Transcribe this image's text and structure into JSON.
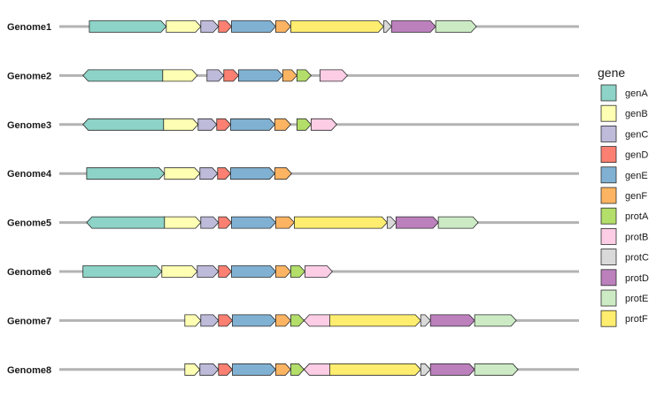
{
  "chart_data": {
    "type": "gene-arrow-map",
    "genomes": [
      "Genome1",
      "Genome2",
      "Genome3",
      "Genome4",
      "Genome5",
      "Genome6",
      "Genome7",
      "Genome8"
    ],
    "legend": {
      "title": "gene",
      "entries": [
        {
          "name": "genA",
          "color": "#8DD3C7"
        },
        {
          "name": "genB",
          "color": "#FFFFB3"
        },
        {
          "name": "genC",
          "color": "#BEBADA"
        },
        {
          "name": "genD",
          "color": "#FB8072"
        },
        {
          "name": "genE",
          "color": "#80B1D3"
        },
        {
          "name": "genF",
          "color": "#FDB462"
        },
        {
          "name": "protA",
          "color": "#B3DE69"
        },
        {
          "name": "protB",
          "color": "#FCCDE5"
        },
        {
          "name": "protC",
          "color": "#D9D9D9"
        },
        {
          "name": "protD",
          "color": "#BC80BD"
        },
        {
          "name": "protE",
          "color": "#CCEBC5"
        },
        {
          "name": "protF",
          "color": "#FFED6F"
        }
      ]
    },
    "genes": {
      "Genome1": [
        {
          "gene": "genA",
          "start": 405,
          "end": 5291
        },
        {
          "gene": "genB",
          "start": 5291,
          "end": 7483
        },
        {
          "gene": "genC",
          "start": 7483,
          "end": 8607
        },
        {
          "gene": "genD",
          "start": 8607,
          "end": 9436
        },
        {
          "gene": "genE",
          "start": 9436,
          "end": 12240
        },
        {
          "gene": "genF",
          "start": 12240,
          "end": 13195
        },
        {
          "gene": "protF",
          "start": 13195,
          "end": 19090
        },
        {
          "gene": "protC",
          "start": 19090,
          "end": 19595
        },
        {
          "gene": "protD",
          "start": 19595,
          "end": 22399
        },
        {
          "gene": "protE",
          "start": 22399,
          "end": 24983
        }
      ],
      "Genome2": [
        {
          "gene": "genA",
          "start": 5066,
          "end": 0
        },
        {
          "gene": "genB",
          "start": 5066,
          "end": 7258
        },
        {
          "gene": "genC",
          "start": 7876,
          "end": 8944
        },
        {
          "gene": "genD",
          "start": 8944,
          "end": 9885
        },
        {
          "gene": "genE",
          "start": 9885,
          "end": 12689
        },
        {
          "gene": "genF",
          "start": 12689,
          "end": 13588
        },
        {
          "gene": "protA",
          "start": 13588,
          "end": 14487
        },
        {
          "gene": "protB",
          "start": 15049,
          "end": 16791
        }
      ],
      "Genome3": [
        {
          "gene": "genA",
          "start": 5123,
          "end": 0
        },
        {
          "gene": "genB",
          "start": 5123,
          "end": 7315
        },
        {
          "gene": "genC",
          "start": 7315,
          "end": 8495
        },
        {
          "gene": "genD",
          "start": 8495,
          "end": 9380
        },
        {
          "gene": "genE",
          "start": 9380,
          "end": 12184
        },
        {
          "gene": "genF",
          "start": 12184,
          "end": 13195
        },
        {
          "gene": "protA",
          "start": 13587,
          "end": 14487
        },
        {
          "gene": "protB",
          "start": 14487,
          "end": 16117
        }
      ],
      "Genome4": [
        {
          "gene": "genA",
          "start": 237,
          "end": 5179
        },
        {
          "gene": "genB",
          "start": 5179,
          "end": 7427
        },
        {
          "gene": "genC",
          "start": 7427,
          "end": 8551
        },
        {
          "gene": "genD",
          "start": 8551,
          "end": 9380
        },
        {
          "gene": "genE",
          "start": 9380,
          "end": 12184
        },
        {
          "gene": "genF",
          "start": 12184,
          "end": 13251
        }
      ],
      "Genome5": [
        {
          "gene": "genA",
          "start": 5179,
          "end": 237
        },
        {
          "gene": "genB",
          "start": 5179,
          "end": 7483
        },
        {
          "gene": "genC",
          "start": 7483,
          "end": 8607
        },
        {
          "gene": "genD",
          "start": 8607,
          "end": 9436
        },
        {
          "gene": "genE",
          "start": 9436,
          "end": 12240
        },
        {
          "gene": "genF",
          "start": 12240,
          "end": 13420
        },
        {
          "gene": "protF",
          "start": 13420,
          "end": 19315
        },
        {
          "gene": "protC",
          "start": 19315,
          "end": 19877
        },
        {
          "gene": "protD",
          "start": 19877,
          "end": 22569
        },
        {
          "gene": "protE",
          "start": 22569,
          "end": 25096
        }
      ],
      "Genome6": [
        {
          "gene": "genA",
          "start": 0,
          "end": 5010
        },
        {
          "gene": "genB",
          "start": 5010,
          "end": 7258
        },
        {
          "gene": "genC",
          "start": 7258,
          "end": 8607
        },
        {
          "gene": "genD",
          "start": 8607,
          "end": 9436
        },
        {
          "gene": "genE",
          "start": 9436,
          "end": 12240
        },
        {
          "gene": "genF",
          "start": 12240,
          "end": 13195
        },
        {
          "gene": "protA",
          "start": 13195,
          "end": 14094
        },
        {
          "gene": "protB",
          "start": 14094,
          "end": 15836
        }
      ],
      "Genome7": [
        {
          "gene": "genB",
          "start": 6471,
          "end": 7483
        },
        {
          "gene": "genC",
          "start": 7483,
          "end": 8607
        },
        {
          "gene": "genD",
          "start": 8607,
          "end": 9492
        },
        {
          "gene": "genE",
          "start": 9492,
          "end": 12240
        },
        {
          "gene": "genF",
          "start": 12240,
          "end": 13195
        },
        {
          "gene": "protA",
          "start": 13195,
          "end": 14038
        },
        {
          "gene": "protB",
          "start": 15667,
          "end": 14038
        },
        {
          "gene": "protF",
          "start": 15667,
          "end": 21451
        },
        {
          "gene": "protC",
          "start": 21451,
          "end": 22069
        },
        {
          "gene": "protD",
          "start": 22069,
          "end": 24871
        },
        {
          "gene": "protE",
          "start": 24871,
          "end": 27512
        }
      ],
      "Genome8": [
        {
          "gene": "genB",
          "start": 6471,
          "end": 7427
        },
        {
          "gene": "genC",
          "start": 7427,
          "end": 8607
        },
        {
          "gene": "genD",
          "start": 8607,
          "end": 9492
        },
        {
          "gene": "genE",
          "start": 9492,
          "end": 12240
        },
        {
          "gene": "genF",
          "start": 12240,
          "end": 13195
        },
        {
          "gene": "protA",
          "start": 13195,
          "end": 14038
        },
        {
          "gene": "protB",
          "start": 15667,
          "end": 14038
        },
        {
          "gene": "protF",
          "start": 15667,
          "end": 21451
        },
        {
          "gene": "protC",
          "start": 21451,
          "end": 22069
        },
        {
          "gene": "protD",
          "start": 22069,
          "end": 24871
        },
        {
          "gene": "protE",
          "start": 24871,
          "end": 27624
        }
      ]
    },
    "x_range": [
      -1500,
      31500
    ],
    "grid": false
  }
}
